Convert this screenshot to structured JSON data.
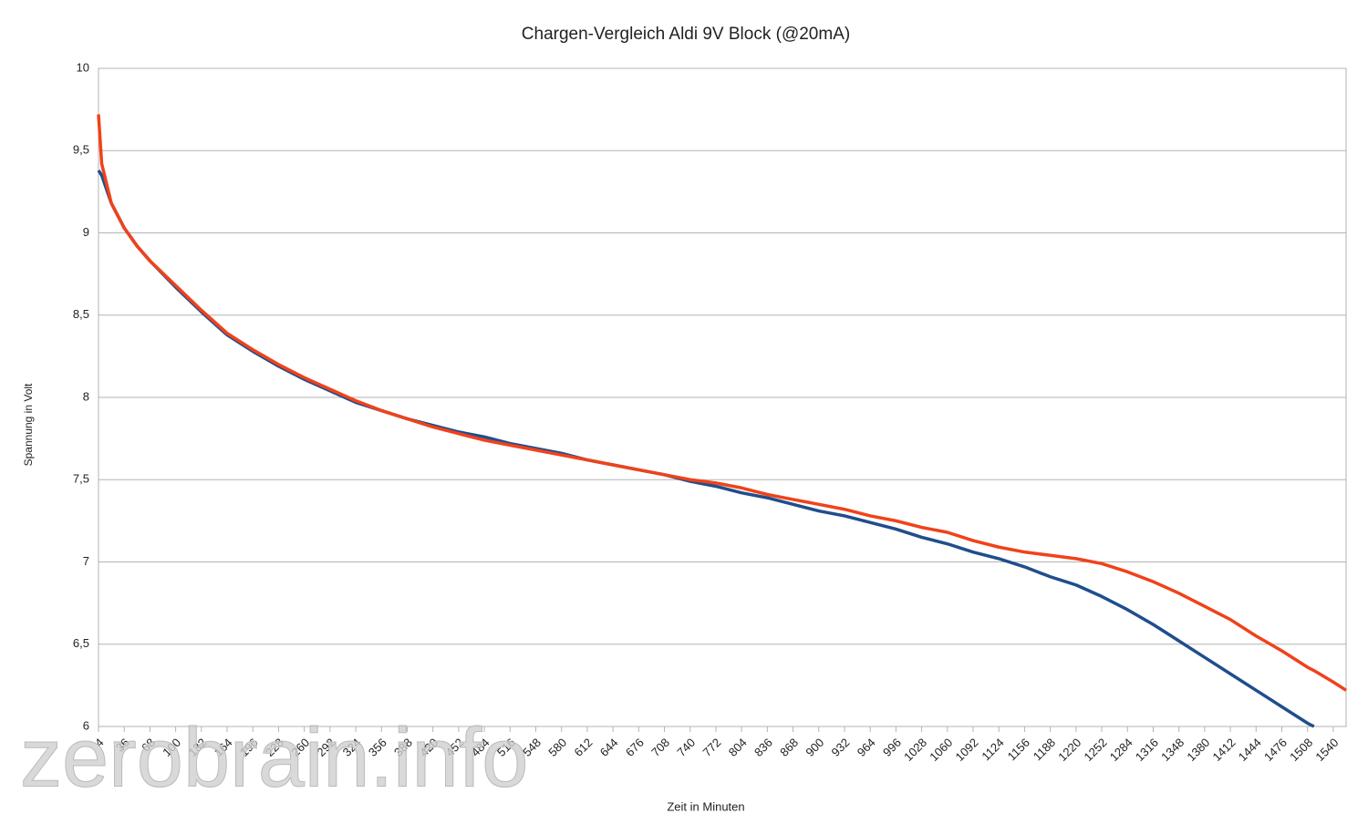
{
  "chart_data": {
    "type": "line",
    "title": "Chargen-Vergleich Aldi 9V Block (@20mA)",
    "x_label": "Zeit in Minuten",
    "y_label": "Spannung in Volt",
    "watermark": "zerobrain.info",
    "x": [
      4,
      8,
      20,
      36,
      52,
      68,
      100,
      132,
      164,
      196,
      228,
      260,
      292,
      324,
      356,
      388,
      420,
      452,
      484,
      516,
      548,
      580,
      612,
      644,
      676,
      708,
      740,
      772,
      804,
      836,
      868,
      900,
      932,
      964,
      996,
      1028,
      1060,
      1092,
      1124,
      1156,
      1188,
      1220,
      1252,
      1284,
      1316,
      1348,
      1380,
      1412,
      1444,
      1476,
      1508,
      1516,
      1540,
      1556
    ],
    "series": [
      {
        "color": "#1f4e8c",
        "values": [
          9.38,
          9.35,
          9.18,
          9.03,
          8.92,
          8.83,
          8.67,
          8.52,
          8.38,
          8.28,
          8.19,
          8.11,
          8.04,
          7.97,
          7.92,
          7.87,
          7.83,
          7.79,
          7.76,
          7.72,
          7.69,
          7.66,
          7.62,
          7.59,
          7.56,
          7.53,
          7.49,
          7.46,
          7.42,
          7.39,
          7.35,
          7.31,
          7.28,
          7.24,
          7.2,
          7.15,
          7.11,
          7.06,
          7.02,
          6.97,
          6.91,
          6.86,
          6.79,
          6.71,
          6.62,
          6.52,
          6.42,
          6.32,
          6.22,
          6.12,
          6.02,
          6.0,
          null,
          null
        ]
      },
      {
        "color": "#f0421a",
        "values": [
          9.72,
          9.42,
          9.18,
          9.03,
          8.92,
          8.83,
          8.68,
          8.53,
          8.39,
          8.29,
          8.2,
          8.12,
          8.05,
          7.98,
          7.92,
          7.87,
          7.82,
          7.78,
          7.74,
          7.71,
          7.68,
          7.65,
          7.62,
          7.59,
          7.56,
          7.53,
          7.5,
          7.48,
          7.45,
          7.41,
          7.38,
          7.35,
          7.32,
          7.28,
          7.25,
          7.21,
          7.18,
          7.13,
          7.09,
          7.06,
          7.04,
          7.02,
          6.99,
          6.94,
          6.88,
          6.81,
          6.73,
          6.65,
          6.55,
          6.46,
          6.36,
          6.34,
          6.27,
          6.22
        ]
      }
    ],
    "xlim": [
      4,
      1556
    ],
    "xticks": [
      4,
      36,
      68,
      100,
      132,
      164,
      196,
      228,
      260,
      292,
      324,
      356,
      388,
      420,
      452,
      484,
      516,
      548,
      580,
      612,
      644,
      676,
      708,
      740,
      772,
      804,
      836,
      868,
      900,
      932,
      964,
      996,
      1028,
      1060,
      1092,
      1124,
      1156,
      1188,
      1220,
      1252,
      1284,
      1316,
      1348,
      1380,
      1412,
      1444,
      1476,
      1508,
      1540
    ],
    "ylim": [
      6,
      10
    ],
    "yticks": [
      6,
      {
        "value": 6.5,
        "label": "6,5"
      },
      7,
      {
        "value": 7.5,
        "label": "7,5"
      },
      8,
      {
        "value": 8.5,
        "label": "8,5"
      },
      9,
      {
        "value": 9.5,
        "label": "9,5"
      },
      10
    ],
    "grid": true
  }
}
